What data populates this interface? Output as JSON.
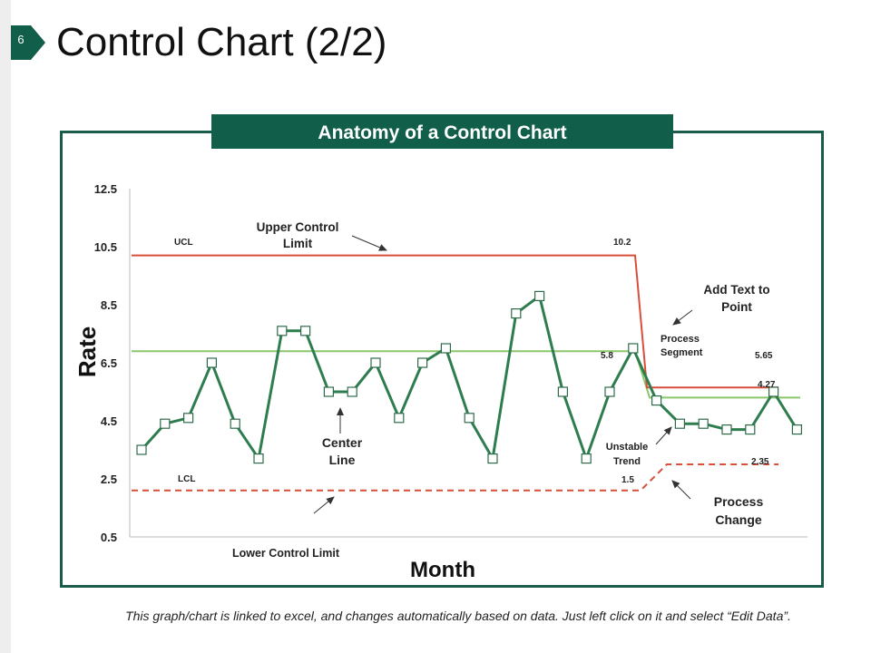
{
  "page": {
    "number": "6",
    "title": "Control Chart (2/2)",
    "footnote": "This graph/chart is linked to excel, and changes automatically based on data. Just left click on it and select “Edit Data”."
  },
  "colors": {
    "accent": "#115e4a",
    "frame": "#1a5c4c",
    "series_line": "#2e7d4f",
    "ucl": "#d94e3a",
    "center": "#8cc66a",
    "lcl": "#d94e3a",
    "marker_fill": "#ffffff",
    "marker_stroke": "#2e6b4a",
    "arrow": "#333333"
  },
  "chart_data": {
    "type": "line",
    "title": "Anatomy of a Control Chart",
    "xlabel": "Month",
    "ylabel": "Rate",
    "ylim": [
      0.5,
      12.5
    ],
    "y_ticks": [
      "12.5",
      "10.5",
      "8.5",
      "6.5",
      "4.5",
      "2.5",
      "0.5"
    ],
    "y_tick_values": [
      12.5,
      10.5,
      8.5,
      6.5,
      4.5,
      2.5,
      0.5
    ],
    "x_count": 29,
    "series": [
      {
        "name": "Rate",
        "values": [
          3.5,
          4.4,
          4.6,
          6.5,
          4.4,
          3.2,
          7.6,
          7.6,
          5.5,
          5.5,
          6.5,
          4.6,
          6.5,
          7.0,
          4.6,
          3.2,
          8.2,
          8.8,
          5.5,
          3.2,
          5.5,
          7.0,
          5.2,
          4.4,
          4.4,
          4.2,
          4.2,
          5.5,
          4.2
        ]
      }
    ],
    "control_limits": {
      "ucl": {
        "segment1": 10.2,
        "segment2": 5.65,
        "break_index": 21.5
      },
      "center": {
        "segment1": 6.9,
        "segment2": 5.3,
        "break_index": 21.5
      },
      "lcl": {
        "segment1": 2.1,
        "segment2": 3.0,
        "break_index": 21.5
      }
    },
    "annotations": {
      "ucl_label": "UCL",
      "lcl_label": "LCL",
      "upper_control_limit_1": "Upper Control",
      "upper_control_limit_2": "Limit",
      "center_line_1": "Center",
      "center_line_2": "Line",
      "lower_control_limit": "Lower Control Limit",
      "add_text_1": "Add Text to",
      "add_text_2": "Point",
      "process_segment_1": "Process",
      "process_segment_2": "Segment",
      "unstable_trend_1": "Unstable",
      "unstable_trend_2": "Trend",
      "process_change_1": "Process",
      "process_change_2": "Change",
      "value_10_2": "10.2",
      "value_5_8": "5.8",
      "value_5_65": "5.65",
      "value_4_27": "4.27",
      "value_2_35": "2.35",
      "value_1_5": "1.5"
    }
  }
}
